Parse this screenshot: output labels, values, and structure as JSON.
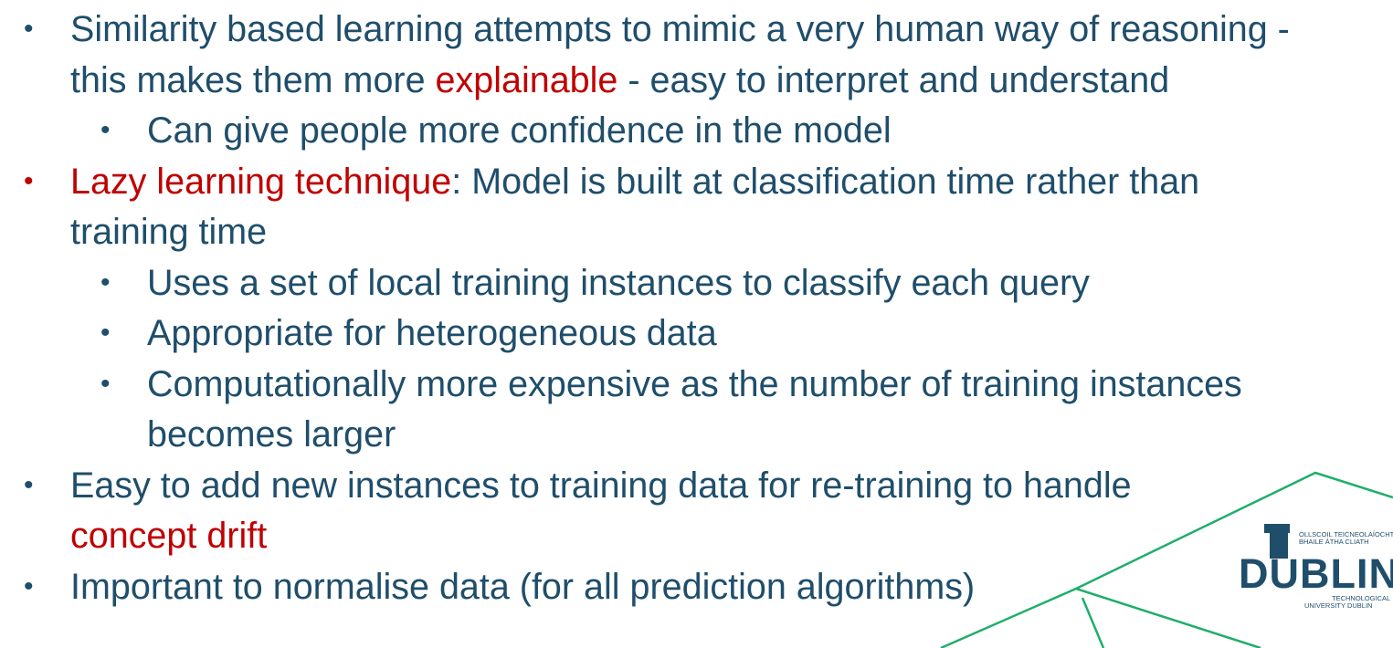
{
  "bullets": [
    {
      "level": 1,
      "color": "#1f4e6b",
      "lines": [
        [
          {
            "text": "Similarity based learning attempts to mimic a very human way of reasoning -",
            "red": false
          }
        ],
        [
          {
            "text": "this makes them more ",
            "red": false
          },
          {
            "text": "explainable",
            "red": true
          },
          {
            "text": " - easy to interpret and understand",
            "red": false
          }
        ]
      ]
    },
    {
      "level": 2,
      "color": "#1f4e6b",
      "lines": [
        [
          {
            "text": "Can give people more confidence in the model",
            "red": false
          }
        ]
      ]
    },
    {
      "level": 1,
      "color": "#c00000",
      "lines": [
        [
          {
            "text": "Lazy learning technique",
            "red": true
          },
          {
            "text": ":  Model is built at classification time rather than",
            "red": false
          }
        ],
        [
          {
            "text": "training time",
            "red": false
          }
        ]
      ]
    },
    {
      "level": 2,
      "color": "#1f4e6b",
      "lines": [
        [
          {
            "text": "Uses a set of local training instances to classify each query",
            "red": false
          }
        ]
      ]
    },
    {
      "level": 2,
      "color": "#1f4e6b",
      "lines": [
        [
          {
            "text": "Appropriate for heterogeneous data",
            "red": false
          }
        ]
      ]
    },
    {
      "level": 2,
      "color": "#1f4e6b",
      "lines": [
        [
          {
            "text": "Computationally more expensive as the number of training instances",
            "red": false
          }
        ],
        [
          {
            "text": "becomes larger",
            "red": false
          }
        ]
      ]
    },
    {
      "level": 1,
      "color": "#1f4e6b",
      "lines": [
        [
          {
            "text": "Easy to add new instances to training data for re-training to handle",
            "red": false
          }
        ],
        [
          {
            "text": "concept drift",
            "red": true
          }
        ]
      ]
    },
    {
      "level": 1,
      "color": "#1f4e6b",
      "lines": [
        [
          {
            "text": "Important to normalise data (for all prediction algorithms)",
            "red": false
          }
        ]
      ]
    }
  ],
  "bullet_glyph": "•",
  "logo": {
    "line1": "OLLSCOIL TEICNEOLAÍOCHTA",
    "line2": "BHAILE ÁTHA CLIATH",
    "word": "DUBLIN",
    "line3": "TECHNOLOGICAL",
    "line4": "UNIVERSITY DUBLIN"
  },
  "colors": {
    "text": "#1f4e6b",
    "accent": "#c00000",
    "decor_line": "#1fae6a"
  }
}
